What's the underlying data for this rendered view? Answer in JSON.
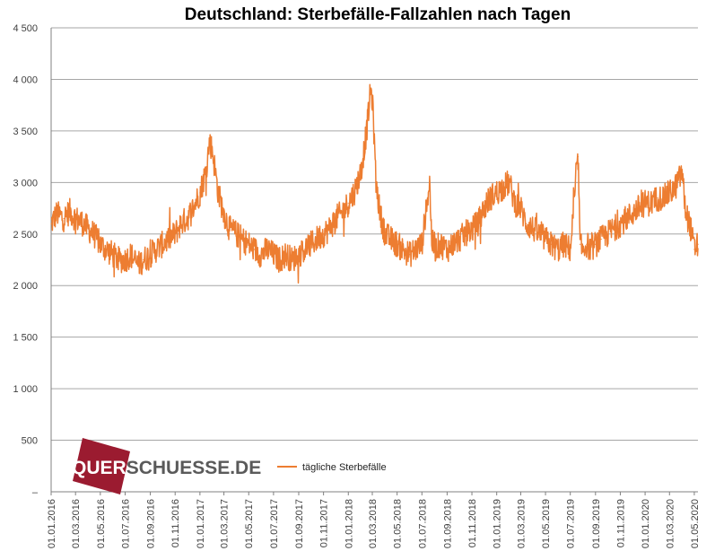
{
  "colors": {
    "series": "#ED7D31",
    "gridline": "#A6A6A6",
    "axis_text": "#404040",
    "logo_red": "#9B1B30",
    "logo_gray": "#5A5A5A"
  },
  "logo": {
    "text_part1": "QUER",
    "text_part2": "SCHUESSE.DE"
  },
  "chart_data": {
    "type": "line",
    "title": "Deutschland:  Sterbefälle-Fallzahlen  nach Tagen",
    "xlabel": "",
    "ylabel": "",
    "ylim": [
      0,
      4500
    ],
    "yticks": [
      0,
      500,
      1000,
      1500,
      2000,
      2500,
      3000,
      3500,
      4000,
      4500
    ],
    "ytick_labels": [
      "–",
      "500",
      "1 000",
      "1 500",
      "2 000",
      "2 500",
      "3 000",
      "3 500",
      "4 000",
      "4 500"
    ],
    "x_range": [
      "2016-01-01",
      "2020-05-10"
    ],
    "xtick_dates": [
      "2016-01-01",
      "2016-03-01",
      "2016-05-01",
      "2016-07-01",
      "2016-09-01",
      "2016-11-01",
      "2017-01-01",
      "2017-03-01",
      "2017-05-01",
      "2017-07-01",
      "2017-09-01",
      "2017-11-01",
      "2018-01-01",
      "2018-03-01",
      "2018-05-01",
      "2018-07-01",
      "2018-09-01",
      "2018-11-01",
      "2019-01-01",
      "2019-03-01",
      "2019-05-01",
      "2019-07-01",
      "2019-09-01",
      "2019-11-01",
      "2020-01-01",
      "2020-03-01",
      "2020-05-01"
    ],
    "xtick_labels": [
      "01.01.2016",
      "01.03.2016",
      "01.05.2016",
      "01.07.2016",
      "01.09.2016",
      "01.11.2016",
      "01.01.2017",
      "01.03.2017",
      "01.05.2017",
      "01.07.2017",
      "01.09.2017",
      "01.11.2017",
      "01.01.2018",
      "01.03.2018",
      "01.05.2018",
      "01.07.2018",
      "01.09.2018",
      "01.11.2018",
      "01.01.2019",
      "01.03.2019",
      "01.05.2019",
      "01.07.2019",
      "01.09.2019",
      "01.11.2019",
      "01.01.2020",
      "01.03.2020",
      "01.05.2020"
    ],
    "grid": true,
    "legend_position": "bottom-left",
    "series": [
      {
        "name": "tägliche Sterbefälle",
        "color": "#ED7D31",
        "x": [
          "2016-01-01",
          "2016-01-15",
          "2016-02-01",
          "2016-02-15",
          "2016-03-01",
          "2016-03-15",
          "2016-04-01",
          "2016-04-15",
          "2016-05-01",
          "2016-05-15",
          "2016-06-01",
          "2016-06-15",
          "2016-07-01",
          "2016-07-15",
          "2016-08-01",
          "2016-08-15",
          "2016-09-01",
          "2016-09-15",
          "2016-10-01",
          "2016-10-15",
          "2016-11-01",
          "2016-11-15",
          "2016-12-01",
          "2016-12-15",
          "2017-01-01",
          "2017-01-15",
          "2017-01-25",
          "2017-02-01",
          "2017-02-08",
          "2017-02-15",
          "2017-03-01",
          "2017-03-15",
          "2017-04-01",
          "2017-04-15",
          "2017-05-01",
          "2017-05-15",
          "2017-06-01",
          "2017-06-15",
          "2017-07-01",
          "2017-07-15",
          "2017-08-01",
          "2017-08-15",
          "2017-09-01",
          "2017-09-15",
          "2017-10-01",
          "2017-10-15",
          "2017-11-01",
          "2017-11-15",
          "2017-12-01",
          "2017-12-15",
          "2018-01-01",
          "2018-01-15",
          "2018-02-01",
          "2018-02-15",
          "2018-02-25",
          "2018-03-01",
          "2018-03-05",
          "2018-03-10",
          "2018-03-20",
          "2018-04-01",
          "2018-04-15",
          "2018-05-01",
          "2018-05-15",
          "2018-06-01",
          "2018-06-15",
          "2018-07-01",
          "2018-07-10",
          "2018-07-20",
          "2018-07-25",
          "2018-08-01",
          "2018-08-15",
          "2018-09-01",
          "2018-09-15",
          "2018-10-01",
          "2018-10-15",
          "2018-11-01",
          "2018-11-15",
          "2018-12-01",
          "2018-12-15",
          "2019-01-01",
          "2019-01-15",
          "2019-02-01",
          "2019-02-15",
          "2019-03-01",
          "2019-03-15",
          "2019-04-01",
          "2019-04-15",
          "2019-05-01",
          "2019-05-15",
          "2019-06-01",
          "2019-06-15",
          "2019-07-01",
          "2019-07-20",
          "2019-07-25",
          "2019-07-30",
          "2019-08-10",
          "2019-08-20",
          "2019-09-01",
          "2019-09-15",
          "2019-10-01",
          "2019-10-15",
          "2019-11-01",
          "2019-11-15",
          "2019-12-01",
          "2019-12-15",
          "2020-01-01",
          "2020-01-15",
          "2020-02-01",
          "2020-02-15",
          "2020-03-01",
          "2020-03-15",
          "2020-04-01",
          "2020-04-10",
          "2020-04-20",
          "2020-05-01",
          "2020-05-10"
        ],
        "values": [
          2600,
          2700,
          2650,
          2720,
          2650,
          2620,
          2550,
          2500,
          2400,
          2350,
          2300,
          2250,
          2250,
          2300,
          2200,
          2250,
          2300,
          2350,
          2400,
          2450,
          2500,
          2600,
          2650,
          2750,
          2900,
          3100,
          3400,
          3300,
          3100,
          2900,
          2700,
          2550,
          2500,
          2450,
          2400,
          2350,
          2300,
          2350,
          2300,
          2250,
          2300,
          2250,
          2300,
          2350,
          2400,
          2450,
          2500,
          2550,
          2650,
          2700,
          2800,
          2900,
          3100,
          3500,
          3900,
          3800,
          3500,
          3000,
          2700,
          2500,
          2450,
          2400,
          2350,
          2300,
          2350,
          2400,
          2700,
          3000,
          2450,
          2350,
          2400,
          2350,
          2400,
          2450,
          2500,
          2550,
          2600,
          2750,
          2850,
          2900,
          2950,
          3000,
          2800,
          2750,
          2600,
          2550,
          2500,
          2450,
          2400,
          2350,
          2400,
          2350,
          3250,
          2400,
          2350,
          2400,
          2350,
          2400,
          2450,
          2500,
          2550,
          2600,
          2650,
          2700,
          2750,
          2800,
          2800,
          2850,
          2850,
          2900,
          2950,
          3100,
          2700,
          2600,
          2350,
          2400
        ]
      }
    ]
  }
}
